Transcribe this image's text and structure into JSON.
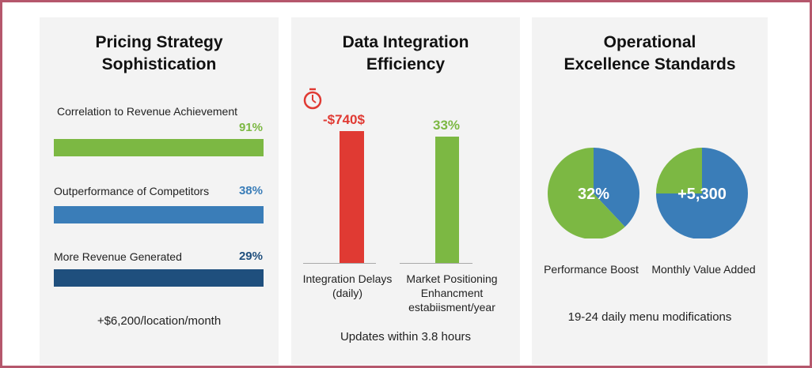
{
  "colors": {
    "green": "#7cb843",
    "blue": "#3a7db8",
    "dark_blue": "#1f4f7d",
    "red": "#e03a33",
    "border": "#b5576c"
  },
  "panels": [
    {
      "title_l1": "Pricing Strategy",
      "title_l2": "Sophistication",
      "metrics": [
        {
          "label": "Correlation to Revenue Achievement",
          "value": "91%",
          "color": "#7cb843"
        },
        {
          "label": "Outperformance of Competitors",
          "value": "38%",
          "color": "#3a7db8"
        },
        {
          "label": "More Revenue Generated",
          "value": "29%",
          "color": "#1f4f7d"
        }
      ],
      "footer": "+$6,200/location/month"
    },
    {
      "title_l1": "Data Integration",
      "title_l2": "Efficiency",
      "icon": "stopwatch-icon",
      "footer": "Updates within 3.8 hours"
    },
    {
      "title_l1": "Operational",
      "title_l2": "Excellence Standards",
      "footer": "19-24 daily menu modifications"
    }
  ],
  "chart_data": [
    {
      "type": "bar",
      "categories": [
        "Integration Delays (daily)",
        "Market Positioning Enhancment estabiisment/year"
      ],
      "data_labels": [
        "-$740$",
        "33%"
      ],
      "colors": [
        "#e03a33",
        "#7cb843"
      ],
      "cat_l1": [
        "Integration Delays",
        "Market Positioning"
      ],
      "cat_l2": [
        "(daily)",
        "Enhancment"
      ],
      "cat_l3": [
        "",
        "estabiisment/year"
      ]
    },
    {
      "type": "pie",
      "pies": [
        {
          "label": "Performance Boost",
          "center_label": "32%",
          "slices": [
            {
              "color": "#3a7db8",
              "fraction": 0.38
            },
            {
              "color": "#7cb843",
              "fraction": 0.62
            }
          ]
        },
        {
          "label": "Monthly Value Added",
          "center_label": "+5,300",
          "slices": [
            {
              "color": "#3a7db8",
              "fraction": 0.75
            },
            {
              "color": "#7cb843",
              "fraction": 0.25
            }
          ]
        }
      ]
    }
  ]
}
